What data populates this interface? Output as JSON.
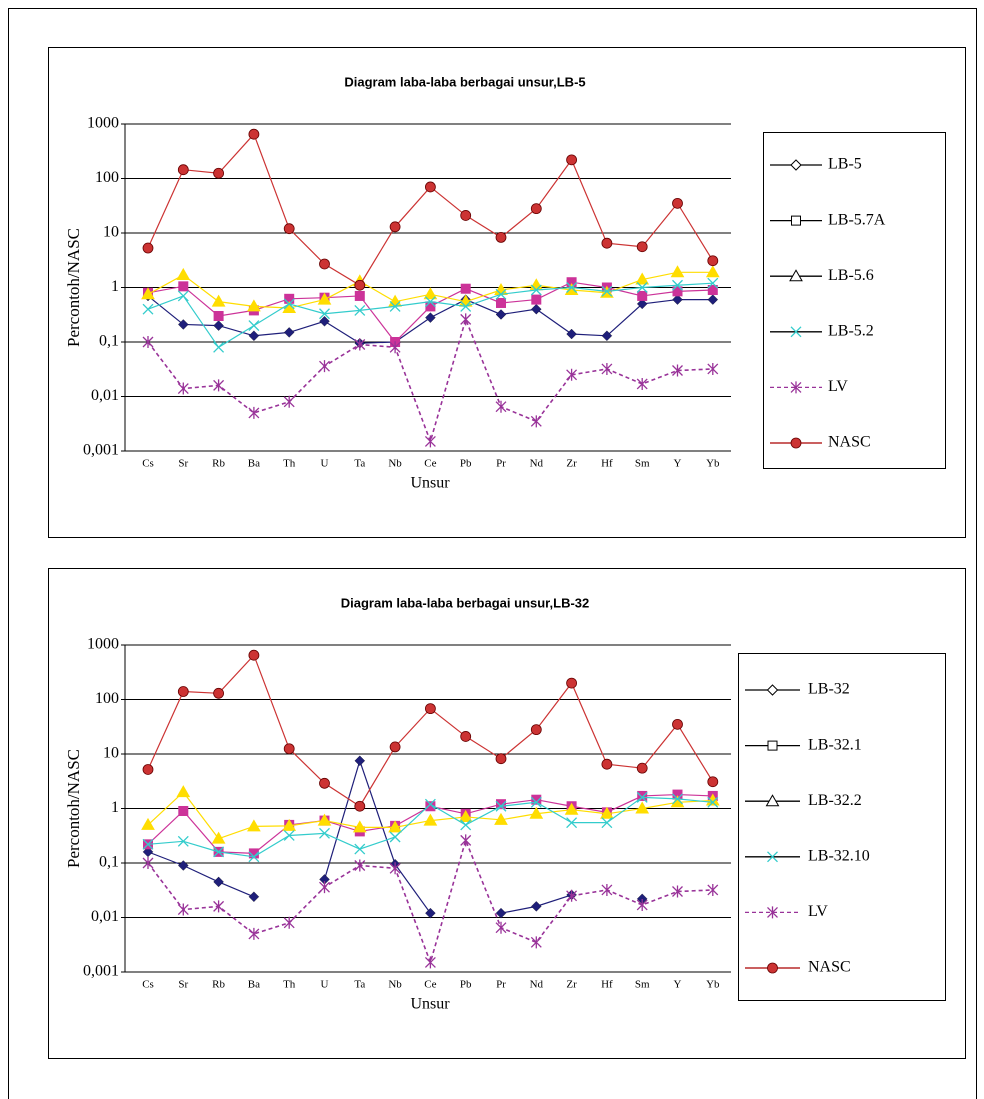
{
  "chart_data": [
    {
      "type": "line",
      "title": "Diagram laba-laba berbagai unsur,LB-5",
      "x_label": "Unsur",
      "y_label": "Percontoh/NASC",
      "categories": [
        "Cs",
        "Sr",
        "Rb",
        "Ba",
        "Th",
        "U",
        "Ta",
        "Nb",
        "Ce",
        "Pb",
        "Pr",
        "Nd",
        "Zr",
        "Hf",
        "Sm",
        "Y",
        "Yb"
      ],
      "log_scale": true,
      "grid": true,
      "legend": "right",
      "ylim": [
        0.001,
        1000
      ],
      "yticks": [
        {
          "value": 0.001,
          "label": "0,001"
        },
        {
          "value": 0.01,
          "label": "0,01"
        },
        {
          "value": 0.1,
          "label": "0,1"
        },
        1,
        10,
        100,
        1000
      ],
      "series": [
        {
          "name": "LB-5",
          "color": "#1f1f7a",
          "marker": "diamond",
          "values": [
            0.7,
            0.21,
            0.2,
            0.13,
            0.15,
            0.24,
            0.095,
            0.1,
            0.28,
            0.6,
            0.32,
            0.4,
            0.14,
            0.13,
            0.5,
            0.6,
            0.6
          ]
        },
        {
          "name": "LB-5.7A",
          "color": "#cc3399",
          "marker": "square",
          "values": [
            0.8,
            1.05,
            0.3,
            0.38,
            0.62,
            0.65,
            0.7,
            0.1,
            0.45,
            0.95,
            0.52,
            0.6,
            1.25,
            1.0,
            0.7,
            0.85,
            0.9
          ]
        },
        {
          "name": "LB-5.6",
          "color": "#ffdd00",
          "marker": "triangle",
          "values": [
            0.75,
            1.7,
            0.55,
            0.45,
            0.42,
            0.6,
            1.3,
            0.55,
            0.75,
            0.55,
            0.9,
            1.1,
            0.9,
            0.8,
            1.4,
            1.9,
            1.9
          ]
        },
        {
          "name": "LB-5.2",
          "color": "#33cccc",
          "marker": "x",
          "values": [
            0.4,
            0.7,
            0.08,
            0.2,
            0.5,
            0.33,
            0.38,
            0.45,
            0.55,
            0.45,
            0.75,
            0.9,
            1.0,
            0.85,
            1.0,
            1.1,
            1.2
          ]
        },
        {
          "name": "LV",
          "color": "#993399",
          "marker": "star",
          "dashed": true,
          "values": [
            0.1,
            0.014,
            0.016,
            0.005,
            0.008,
            0.036,
            0.09,
            0.08,
            0.0015,
            0.26,
            0.0065,
            0.0035,
            0.025,
            0.032,
            0.017,
            0.03,
            0.032
          ]
        },
        {
          "name": "NASC",
          "color": "#cc3333",
          "marker": "circle",
          "values": [
            5.3,
            145,
            125,
            650,
            12,
            2.7,
            1.1,
            13,
            70,
            21,
            8.3,
            28,
            220,
            6.5,
            5.6,
            35,
            3.1
          ]
        }
      ]
    },
    {
      "type": "line",
      "title": "Diagram laba-laba berbagai unsur,LB-32",
      "x_label": "Unsur",
      "y_label": "Percontoh/NASC",
      "categories": [
        "Cs",
        "Sr",
        "Rb",
        "Ba",
        "Th",
        "U",
        "Ta",
        "Nb",
        "Ce",
        "Pb",
        "Pr",
        "Nd",
        "Zr",
        "Hf",
        "Sm",
        "Y",
        "Yb"
      ],
      "log_scale": true,
      "grid": true,
      "legend": "right",
      "ylim": [
        0.001,
        1000
      ],
      "yticks": [
        {
          "value": 0.001,
          "label": "0,001"
        },
        {
          "value": 0.01,
          "label": "0,01"
        },
        {
          "value": 0.1,
          "label": "0,1"
        },
        1,
        10,
        100,
        1000
      ],
      "series": [
        {
          "name": "LB-32",
          "color": "#1f1f7a",
          "marker": "diamond",
          "values": [
            0.16,
            0.09,
            0.045,
            0.024,
            null,
            0.05,
            7.5,
            0.095,
            0.012,
            null,
            0.012,
            0.016,
            0.026,
            null,
            0.022,
            null,
            null
          ]
        },
        {
          "name": "LB-32.1",
          "color": "#cc3399",
          "marker": "square",
          "values": [
            0.22,
            0.9,
            0.16,
            0.15,
            0.5,
            0.6,
            0.38,
            0.48,
            1.1,
            0.8,
            1.2,
            1.45,
            1.1,
            0.85,
            1.7,
            1.8,
            1.7
          ]
        },
        {
          "name": "LB-32.2",
          "color": "#ffdd00",
          "marker": "triangle",
          "values": [
            0.5,
            2.0,
            0.28,
            0.47,
            0.48,
            0.6,
            0.45,
            0.45,
            0.6,
            0.7,
            0.62,
            0.8,
            0.95,
            0.8,
            1.0,
            1.3,
            1.4
          ]
        },
        {
          "name": "LB-32.10",
          "color": "#33cccc",
          "marker": "x",
          "values": [
            0.22,
            0.25,
            0.16,
            0.13,
            0.32,
            0.35,
            0.18,
            0.3,
            1.2,
            0.5,
            1.1,
            1.3,
            0.55,
            0.55,
            1.6,
            1.5,
            1.3
          ]
        },
        {
          "name": "LV",
          "color": "#993399",
          "marker": "star",
          "dashed": true,
          "values": [
            0.1,
            0.014,
            0.016,
            0.005,
            0.008,
            0.036,
            0.09,
            0.08,
            0.0015,
            0.26,
            0.0065,
            0.0035,
            0.025,
            0.032,
            0.017,
            0.03,
            0.032
          ]
        },
        {
          "name": "NASC",
          "color": "#cc3333",
          "marker": "circle",
          "values": [
            5.2,
            140,
            130,
            650,
            12.5,
            2.9,
            1.1,
            13.5,
            68,
            21,
            8.2,
            28,
            200,
            6.5,
            5.5,
            35,
            3.1
          ]
        }
      ]
    }
  ]
}
